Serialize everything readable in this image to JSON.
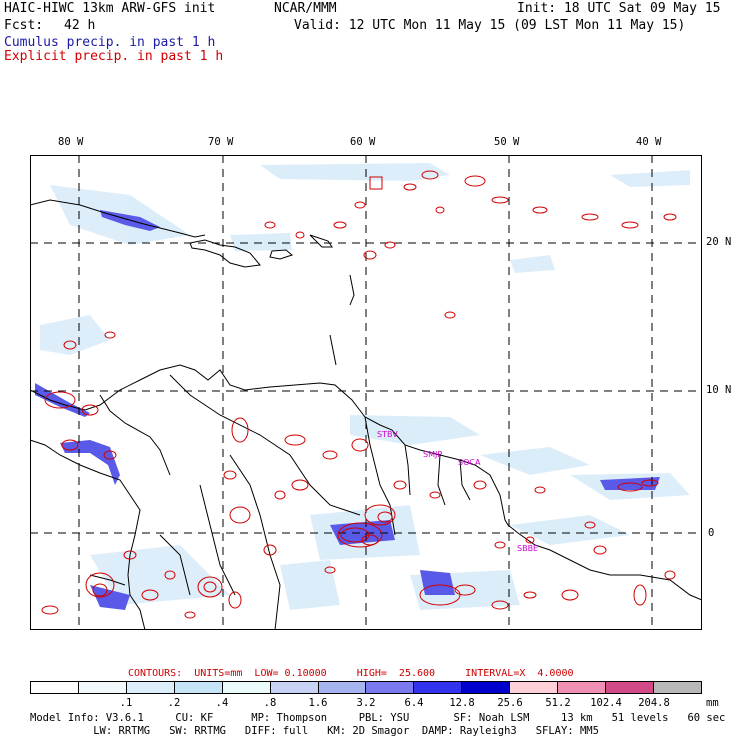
{
  "header": {
    "title": "HAIC-HIWC 13km ARW-GFS init",
    "center": "NCAR/MMM",
    "init": "Init: 18 UTC Sat 09 May 15",
    "fcst_label": "Fcst:",
    "fcst_value": "42 h",
    "valid": "Valid: 12 UTC Mon 11 May 15 (09 LST Mon 11 May 15)",
    "cumulus": "Cumulus precip. in past 1 h",
    "explicit": "Explicit precip. in past 1 h"
  },
  "map": {
    "lon_labels": [
      "80 W",
      "70 W",
      "60 W",
      "50 W",
      "40 W"
    ],
    "lat_labels": [
      "20 N",
      "10 N",
      "0"
    ],
    "stations": [
      "STBV",
      "SMJP",
      "SOCA",
      "SBBE"
    ],
    "colors": {
      "land": "#ffffff",
      "outline": "#000000",
      "grid": "#000000",
      "explicit": "#d10000",
      "cumulus": "#3a3aee",
      "station": "#cc00cc"
    }
  },
  "legend": {
    "contours": "CONTOURS:  UNITS=mm  LOW= 0.10000     HIGH=  25.600     INTERVAL=X  4.0000",
    "colors": [
      "#ffffff",
      "#f2f9fd",
      "#dceefa",
      "#c6e6f8",
      "#ebfbfb",
      "#c8d2f5",
      "#a6b4f0",
      "#7a7aee",
      "#3333ee",
      "#0000cc",
      "#ffd0d8",
      "#f090b4",
      "#d04a88",
      "#b8b8b8",
      "#444444",
      "#cca0f4"
    ],
    "ticks": [
      ".1",
      ".2",
      ".4",
      ".8",
      "1.6",
      "3.2",
      "6.4",
      "12.8",
      "25.6",
      "51.2",
      "102.4",
      "204.8"
    ],
    "unit": "mm"
  },
  "model_info": {
    "line1": "Model Info: V3.6.1     CU: KF      MP: Thompson     PBL: YSU       SF: Noah LSM     13 km   51 levels   60 sec",
    "line2": "          LW: RRTMG   SW: RRTMG   DIFF: full   KM: 2D Smagor  DAMP: Rayleigh3   SFLAY: MM5"
  }
}
